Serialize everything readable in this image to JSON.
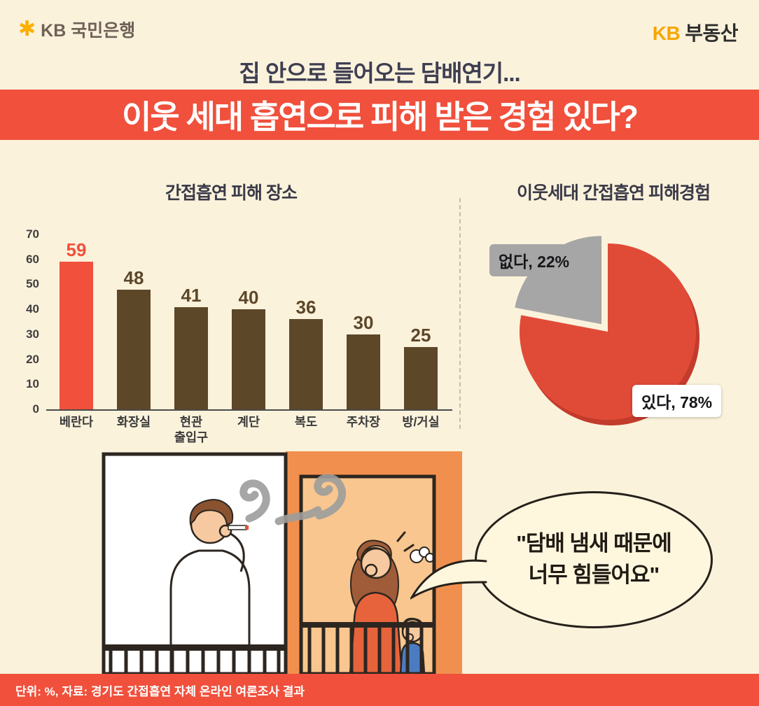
{
  "page": {
    "bg": "#FBF2DC",
    "accent": "#F0503C"
  },
  "header": {
    "logo_left": {
      "icon_glyph": "✱",
      "text": "KB 국민은행"
    },
    "logo_right": {
      "kb": "KB",
      "text": "부동산"
    },
    "subtitle": "집 안으로 들어오는 담배연기...",
    "title": "이웃 세대 흡연으로 피해 받은 경험 있다?"
  },
  "chart_data": [
    {
      "type": "bar",
      "title": "간접흡연 피해 장소",
      "unit": "%",
      "categories": [
        "베란다",
        "화장실",
        "현관\n출입구",
        "계단",
        "복도",
        "주차장",
        "방/거실"
      ],
      "values": [
        59,
        48,
        41,
        40,
        36,
        30,
        25
      ],
      "ylim": [
        0,
        70
      ],
      "yticks": [
        0,
        10,
        20,
        30,
        40,
        50,
        60,
        70
      ],
      "grid": false,
      "bar_color": "#5D4729",
      "highlight_index": 0,
      "highlight_color": "#F0503C"
    },
    {
      "type": "pie",
      "title": "이웃세대 간접흡연 피해경험",
      "unit": "%",
      "shadow_color": "#C33B2B",
      "slices": [
        {
          "label": "있다, 78%",
          "value": 78,
          "color": "#E04B38",
          "exploded": false
        },
        {
          "label": "없다, 22%",
          "value": 22,
          "color": "#A6A6A6",
          "exploded": true
        }
      ]
    }
  ],
  "illustration": {
    "speech_bubble_line1": "\"담배 냄새 때문에",
    "speech_bubble_line2": "너무 힘들어요\""
  },
  "footer": {
    "text": "단위: %, 자료: 경기도 간접흡연 자체 온라인 여론조사 결과"
  }
}
